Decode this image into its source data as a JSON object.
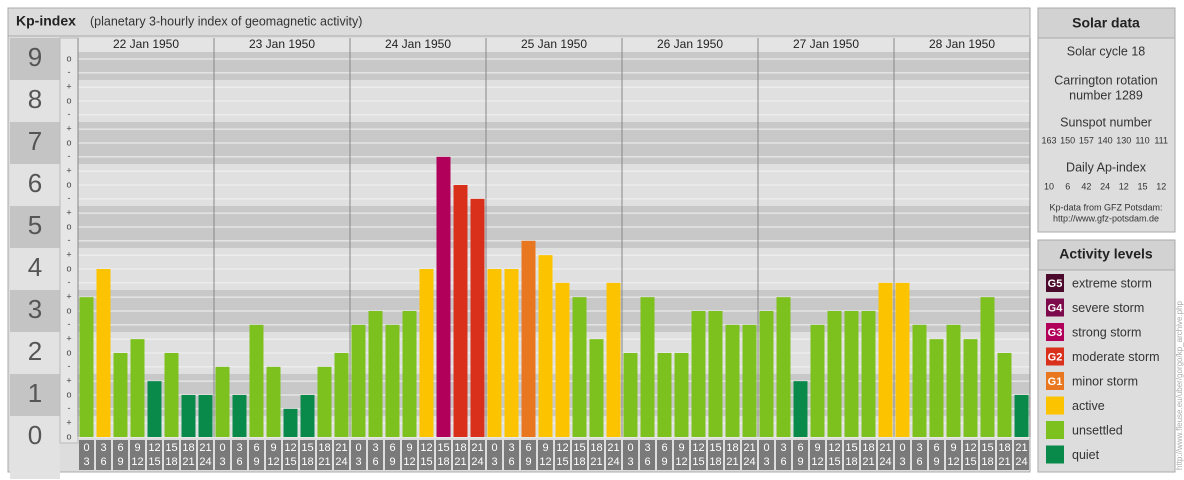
{
  "chart_data": {
    "type": "bar",
    "title": "Kp-index",
    "subtitle": "(planetary 3-hourly index of geomagnetic activity)",
    "ylim": [
      0,
      9.5
    ],
    "yticks": [
      0,
      1,
      2,
      3,
      4,
      5,
      6,
      7,
      8,
      9
    ],
    "minor_yticks": [
      {
        "value": 0,
        "label": "o"
      },
      {
        "value": 0.33,
        "label": "+"
      },
      {
        "value": 0.67,
        "label": "-"
      },
      {
        "value": 1,
        "label": "o"
      },
      {
        "value": 1.33,
        "label": "+"
      },
      {
        "value": 1.67,
        "label": "-"
      },
      {
        "value": 2,
        "label": "o"
      },
      {
        "value": 2.33,
        "label": "+"
      },
      {
        "value": 2.67,
        "label": "-"
      },
      {
        "value": 3,
        "label": "o"
      },
      {
        "value": 3.33,
        "label": "+"
      },
      {
        "value": 3.67,
        "label": "-"
      },
      {
        "value": 4,
        "label": "o"
      },
      {
        "value": 4.33,
        "label": "+"
      },
      {
        "value": 4.67,
        "label": "-"
      },
      {
        "value": 5,
        "label": "o"
      },
      {
        "value": 5.33,
        "label": "+"
      },
      {
        "value": 5.67,
        "label": "-"
      },
      {
        "value": 6,
        "label": "o"
      },
      {
        "value": 6.33,
        "label": "+"
      },
      {
        "value": 6.67,
        "label": "-"
      },
      {
        "value": 7,
        "label": "o"
      },
      {
        "value": 7.33,
        "label": "+"
      },
      {
        "value": 7.67,
        "label": "-"
      },
      {
        "value": 8,
        "label": "o"
      },
      {
        "value": 8.33,
        "label": "+"
      },
      {
        "value": 8.67,
        "label": "-"
      },
      {
        "value": 9,
        "label": "o"
      }
    ],
    "hours": [
      [
        "0",
        "3"
      ],
      [
        "3",
        "6"
      ],
      [
        "6",
        "9"
      ],
      [
        "9",
        "12"
      ],
      [
        "12",
        "15"
      ],
      [
        "15",
        "18"
      ],
      [
        "18",
        "21"
      ],
      [
        "21",
        "24"
      ]
    ],
    "groups": [
      {
        "label": "22 Jan 1950",
        "values": [
          3.33,
          4,
          2,
          2.33,
          1.33,
          2,
          1,
          1
        ],
        "colors": [
          "#7dc11f",
          "#fbc300",
          "#7dc11f",
          "#7dc11f",
          "#0a8a4a",
          "#7dc11f",
          "#0a8a4a",
          "#0a8a4a"
        ]
      },
      {
        "label": "23 Jan 1950",
        "values": [
          1.67,
          1,
          2.67,
          1.67,
          0.67,
          1,
          1.67,
          2
        ],
        "colors": [
          "#7dc11f",
          "#0a8a4a",
          "#7dc11f",
          "#7dc11f",
          "#0a8a4a",
          "#0a8a4a",
          "#7dc11f",
          "#7dc11f"
        ]
      },
      {
        "label": "24 Jan 1950",
        "values": [
          2.67,
          3,
          2.67,
          3,
          4,
          6.67,
          6,
          5.67
        ],
        "colors": [
          "#7dc11f",
          "#7dc11f",
          "#7dc11f",
          "#7dc11f",
          "#fbc300",
          "#b0005a",
          "#d9301c",
          "#d9301c"
        ]
      },
      {
        "label": "25 Jan 1950",
        "values": [
          4,
          4,
          4.67,
          4.33,
          3.67,
          3.33,
          2.33,
          3.67
        ],
        "colors": [
          "#fbc300",
          "#fbc300",
          "#e8771f",
          "#fbc300",
          "#fbc300",
          "#7dc11f",
          "#7dc11f",
          "#fbc300"
        ]
      },
      {
        "label": "26 Jan 1950",
        "values": [
          2,
          3.33,
          2,
          2,
          3,
          3,
          2.67,
          2.67
        ],
        "colors": [
          "#7dc11f",
          "#7dc11f",
          "#7dc11f",
          "#7dc11f",
          "#7dc11f",
          "#7dc11f",
          "#7dc11f",
          "#7dc11f"
        ]
      },
      {
        "label": "27 Jan 1950",
        "values": [
          3,
          3.33,
          1.33,
          2.67,
          3,
          3,
          3,
          3.67
        ],
        "colors": [
          "#7dc11f",
          "#7dc11f",
          "#0a8a4a",
          "#7dc11f",
          "#7dc11f",
          "#7dc11f",
          "#7dc11f",
          "#fbc300"
        ]
      },
      {
        "label": "28 Jan 1950",
        "values": [
          3.67,
          2.67,
          2.33,
          2.67,
          2.33,
          3.33,
          2,
          1
        ],
        "colors": [
          "#fbc300",
          "#7dc11f",
          "#7dc11f",
          "#7dc11f",
          "#7dc11f",
          "#7dc11f",
          "#7dc11f",
          "#0a8a4a"
        ]
      }
    ]
  },
  "solar_data": {
    "title": "Solar data",
    "cycle": "Solar cycle 18",
    "carrington": [
      "Carrington rotation",
      "number 1289"
    ],
    "sunspot_title": "Sunspot number",
    "sunspot": [
      163,
      150,
      157,
      140,
      130,
      110,
      111
    ],
    "ap_title": "Daily Ap-index",
    "ap": [
      10,
      6,
      42,
      24,
      12,
      15,
      12
    ],
    "source": "Kp-data from GFZ Potsdam:",
    "source_url": "http://www.gfz-potsdam.de"
  },
  "activity_levels": {
    "title": "Activity levels",
    "items": [
      {
        "code": "G5",
        "name": "extreme storm",
        "color": "#4b0a2b"
      },
      {
        "code": "G4",
        "name": "severe storm",
        "color": "#7d0a4a"
      },
      {
        "code": "G3",
        "name": "strong storm",
        "color": "#b0005a"
      },
      {
        "code": "G2",
        "name": "moderate storm",
        "color": "#d9301c"
      },
      {
        "code": "G1",
        "name": "minor storm",
        "color": "#e8771f"
      },
      {
        "name": "active",
        "color": "#fbc300"
      },
      {
        "name": "unsettled",
        "color": "#7dc11f"
      },
      {
        "name": "quiet",
        "color": "#0a8a4a"
      }
    ]
  },
  "credit": "http://www.fleuse.eu/uber/gorgo/kp_archive.php"
}
